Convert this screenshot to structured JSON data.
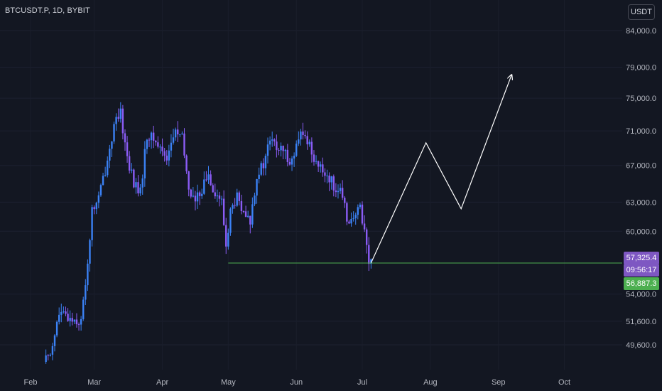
{
  "header": {
    "symbol": "BTCUSDT.P, 1D, BYBIT",
    "currency": "USDT"
  },
  "colors": {
    "background": "#131722",
    "candle_up": "#3b82f6",
    "candle_down": "#8b5cf6",
    "support_line": "#4caf50",
    "projection": "#ffffff",
    "tag_last_price": "#7e57c2",
    "tag_countdown": "#7e57c2",
    "tag_support": "#4caf50"
  },
  "price_tags": {
    "last_price": "57,325.4",
    "countdown": "09:56:17",
    "support": "56,887.3"
  },
  "chart_data": {
    "type": "candlestick",
    "title": "BTCUSDT.P, 1D, BYBIT",
    "y_axis_scale": "log",
    "y_ticks": [
      {
        "label": "84,000.0",
        "value": 84000
      },
      {
        "label": "79,000.0",
        "value": 79000
      },
      {
        "label": "75,000.0",
        "value": 75000
      },
      {
        "label": "71,000.0",
        "value": 71000
      },
      {
        "label": "67,000.0",
        "value": 67000
      },
      {
        "label": "63,000.0",
        "value": 63000
      },
      {
        "label": "60,000.0",
        "value": 60000
      },
      {
        "label": "54,000.0",
        "value": 54000
      },
      {
        "label": "51,600.0",
        "value": 51600
      },
      {
        "label": "49,600.0",
        "value": 49600
      }
    ],
    "x_ticks": [
      "Feb",
      "Mar",
      "Apr",
      "May",
      "Jun",
      "Jul",
      "Aug",
      "Sep",
      "Oct"
    ],
    "price_path": [
      {
        "date": "Feb 08",
        "price": 48200
      },
      {
        "date": "Feb 11",
        "price": 49000
      },
      {
        "date": "Feb 15",
        "price": 52200
      },
      {
        "date": "Feb 18",
        "price": 52000
      },
      {
        "date": "Feb 22",
        "price": 51800
      },
      {
        "date": "Feb 25",
        "price": 51500
      },
      {
        "date": "Feb 28",
        "price": 57000
      },
      {
        "date": "Mar 01",
        "price": 62000
      },
      {
        "date": "Mar 04",
        "price": 63500
      },
      {
        "date": "Mar 07",
        "price": 66500
      },
      {
        "date": "Mar 11",
        "price": 71500
      },
      {
        "date": "Mar 14",
        "price": 73000
      },
      {
        "date": "Mar 17",
        "price": 68000
      },
      {
        "date": "Mar 20",
        "price": 65000
      },
      {
        "date": "Mar 23",
        "price": 64000
      },
      {
        "date": "Mar 26",
        "price": 70500
      },
      {
        "date": "Mar 29",
        "price": 70000
      },
      {
        "date": "Apr 01",
        "price": 69000
      },
      {
        "date": "Apr 04",
        "price": 68000
      },
      {
        "date": "Apr 08",
        "price": 71000
      },
      {
        "date": "Apr 11",
        "price": 70000
      },
      {
        "date": "Apr 14",
        "price": 64500
      },
      {
        "date": "Apr 17",
        "price": 63000
      },
      {
        "date": "Apr 20",
        "price": 64500
      },
      {
        "date": "Apr 23",
        "price": 66000
      },
      {
        "date": "Apr 26",
        "price": 64000
      },
      {
        "date": "Apr 29",
        "price": 63000
      },
      {
        "date": "May 01",
        "price": 58500
      },
      {
        "date": "May 03",
        "price": 62000
      },
      {
        "date": "May 06",
        "price": 63500
      },
      {
        "date": "May 09",
        "price": 61500
      },
      {
        "date": "May 12",
        "price": 61000
      },
      {
        "date": "May 15",
        "price": 66000
      },
      {
        "date": "May 18",
        "price": 67000
      },
      {
        "date": "May 21",
        "price": 70000
      },
      {
        "date": "May 24",
        "price": 69000
      },
      {
        "date": "May 27",
        "price": 68500
      },
      {
        "date": "May 31",
        "price": 67500
      },
      {
        "date": "Jun 04",
        "price": 70500
      },
      {
        "date": "Jun 07",
        "price": 70000
      },
      {
        "date": "Jun 10",
        "price": 68000
      },
      {
        "date": "Jun 13",
        "price": 66500
      },
      {
        "date": "Jun 16",
        "price": 66000
      },
      {
        "date": "Jun 19",
        "price": 64800
      },
      {
        "date": "Jun 22",
        "price": 64000
      },
      {
        "date": "Jun 25",
        "price": 61500
      },
      {
        "date": "Jun 28",
        "price": 61000
      },
      {
        "date": "Jul 01",
        "price": 62500
      },
      {
        "date": "Jul 03",
        "price": 60200
      },
      {
        "date": "Jul 05",
        "price": 56900
      }
    ],
    "support_level": 56887.3,
    "projection_path": [
      {
        "date": "Jul 05",
        "price": 56900
      },
      {
        "date": "Jul 30",
        "price": 69600
      },
      {
        "date": "Aug 15",
        "price": 62300
      },
      {
        "date": "Sep 07",
        "price": 78000
      }
    ]
  }
}
